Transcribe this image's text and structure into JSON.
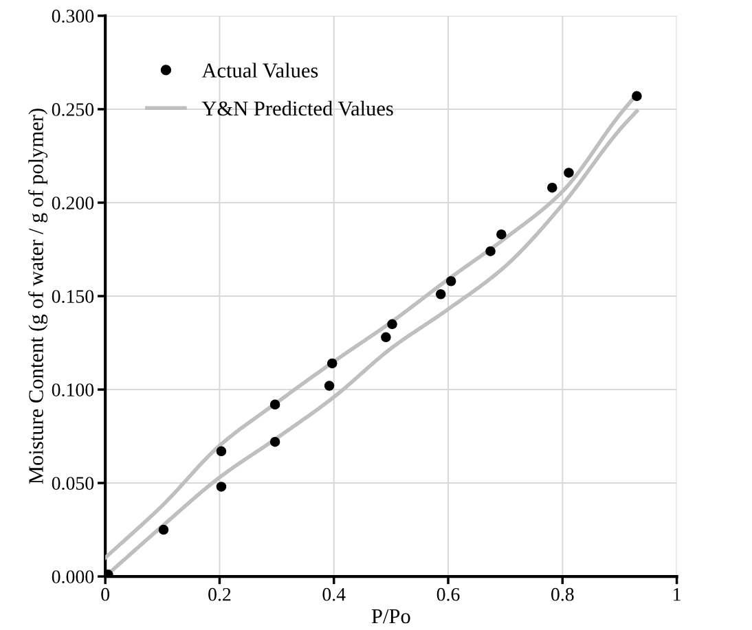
{
  "chart_data": {
    "type": "scatter",
    "xlabel": "P/Po",
    "ylabel": "Moisture Content (g of water / g of polymer)",
    "xlim": [
      0,
      1
    ],
    "xticks": [
      0,
      0.2,
      0.4,
      0.6,
      0.8,
      1
    ],
    "ylim": [
      0,
      0.3
    ],
    "yticks": [
      {
        "value": 0,
        "label": "0.000"
      },
      {
        "value": 0.05,
        "label": "0.050"
      },
      {
        "value": 0.1,
        "label": "0.100"
      },
      {
        "value": 0.15,
        "label": "0.150"
      },
      {
        "value": 0.2,
        "label": "0.200"
      },
      {
        "value": 0.25,
        "label": "0.250"
      },
      {
        "value": 0.3,
        "label": "0.300"
      }
    ],
    "grid": true,
    "legend": "top left",
    "marker": "circle",
    "series": [
      {
        "name": "Actual Values",
        "color": "#000000",
        "x": [
          0.005,
          0.102,
          0.203,
          0.203,
          0.297,
          0.297,
          0.397,
          0.392,
          0.491,
          0.502,
          0.587,
          0.605,
          0.674,
          0.693,
          0.782,
          0.811,
          0.93
        ],
        "values": [
          0.001,
          0.025,
          0.067,
          0.048,
          0.092,
          0.072,
          0.114,
          0.102,
          0.128,
          0.135,
          0.151,
          0.158,
          0.174,
          0.183,
          0.208,
          0.216,
          0.257
        ]
      },
      {
        "name": "Y&N Predicted Values",
        "type": "line",
        "color": "#bfbfbf",
        "marker": "none",
        "line_style": "solid",
        "x": [
          0,
          0.1,
          0.2,
          0.3,
          0.4,
          0.5,
          0.6,
          0.7,
          0.8,
          0.9,
          0.93
        ],
        "values": [
          0.01,
          0.038,
          0.07,
          0.093,
          0.115,
          0.136,
          0.159,
          0.181,
          0.206,
          0.247,
          0.258
        ]
      },
      {
        "type": "line",
        "color": "#bfbfbf",
        "marker": "none",
        "line_style": "solid",
        "x": [
          0,
          0.1,
          0.2,
          0.3,
          0.4,
          0.5,
          0.6,
          0.7,
          0.8,
          0.9,
          0.93
        ],
        "values": [
          0.0,
          0.027,
          0.053,
          0.074,
          0.096,
          0.122,
          0.143,
          0.166,
          0.199,
          0.239,
          0.249
        ]
      }
    ]
  }
}
